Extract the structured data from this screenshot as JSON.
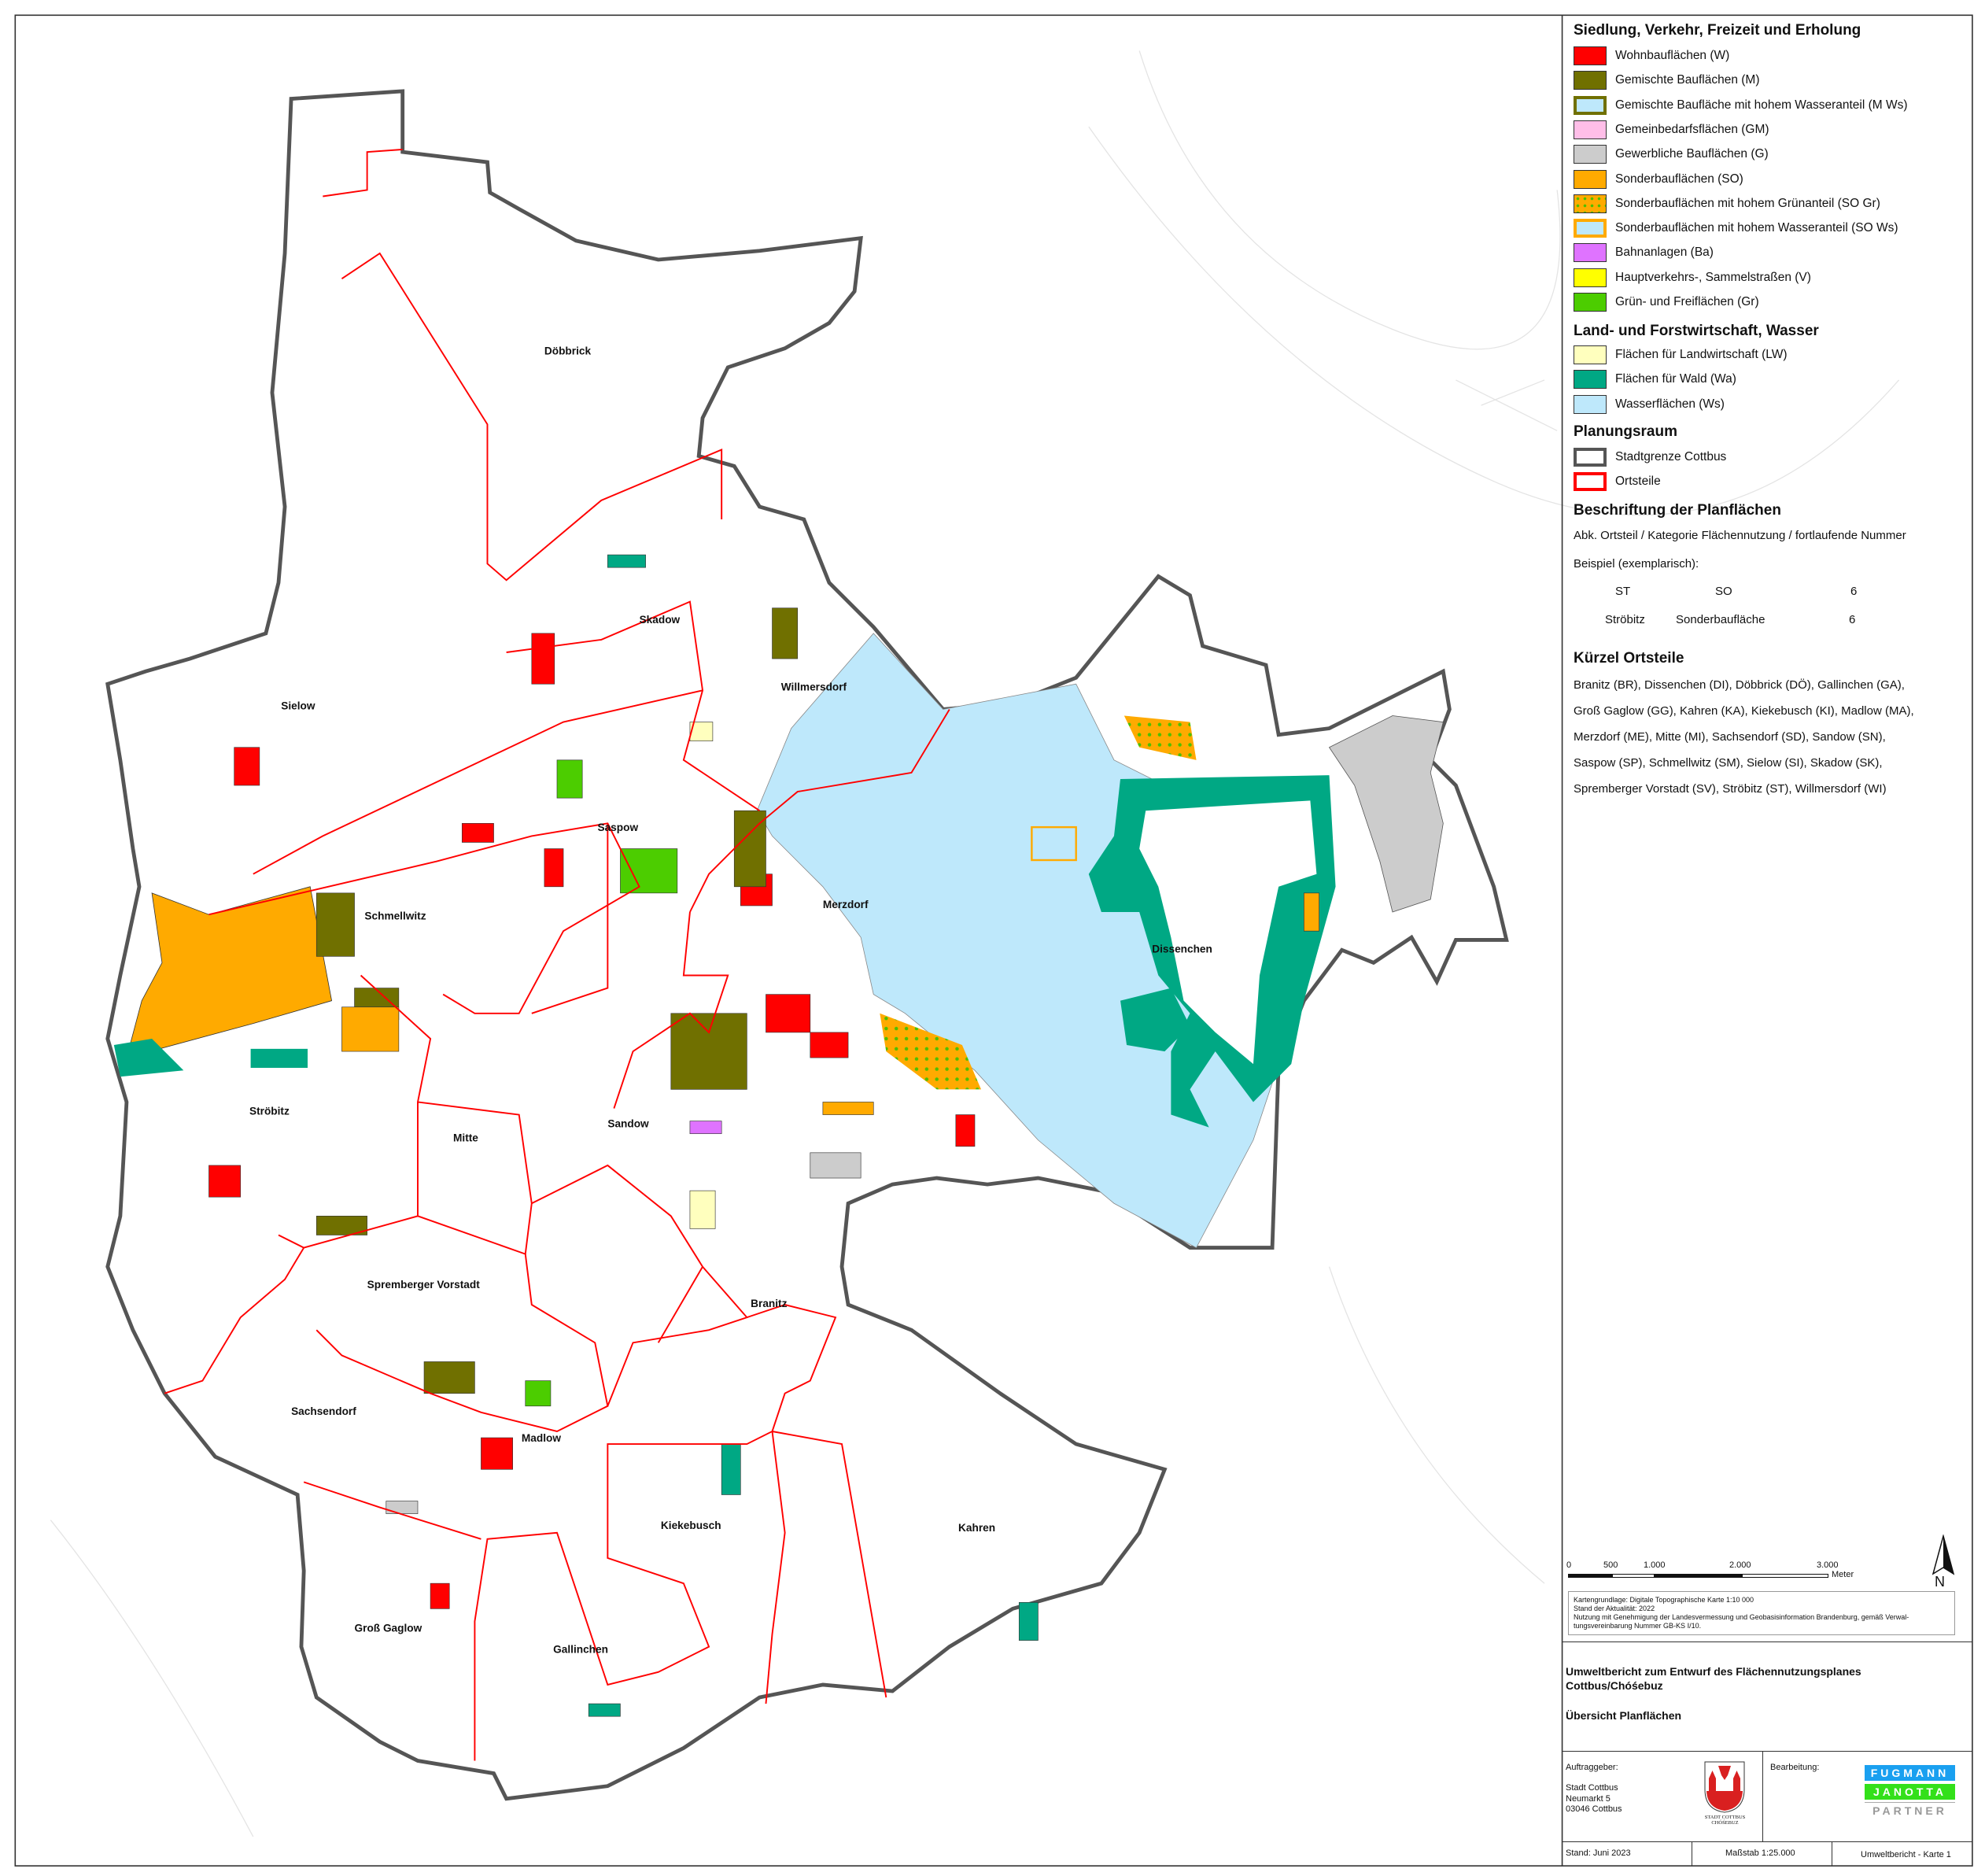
{
  "legend": {
    "section1_title": "Siedlung, Verkehr, Freizeit und Erholung",
    "section1_items": [
      {
        "label": "Wohnbauflächen (W)",
        "color": "#ff0000"
      },
      {
        "label": "Gemischte Bauflächen (M)",
        "color": "#707000"
      },
      {
        "label": "Gemischte Baufläche mit hohem Wasseranteil (M Ws)",
        "color": "#bee8fb",
        "border": "#707000"
      },
      {
        "label": "Gemeinbedarfsflächen (GM)",
        "color": "#ffbee8"
      },
      {
        "label": "Gewerbliche Bauflächen (G)",
        "color": "#cccccc"
      },
      {
        "label": "Sonderbauflächen (SO)",
        "color": "#ffaa00"
      },
      {
        "label": "Sonderbauflächen mit hohem Grünanteil (SO Gr)",
        "color": "#ffaa00",
        "pattern": "#4cc000"
      },
      {
        "label": "Sonderbauflächen mit hohem Wasseranteil (SO Ws)",
        "color": "#bee8fb",
        "border": "#ffaa00"
      },
      {
        "label": "Bahnanlagen (Ba)",
        "color": "#df73ff"
      },
      {
        "label": "Hauptverkehrs-, Sammelstraßen (V)",
        "color": "#ffff00"
      },
      {
        "label": "Grün- und Freiflächen (Gr)",
        "color": "#4ccd00"
      }
    ],
    "section2_title": "Land- und Forstwirtschaft, Wasser",
    "section2_items": [
      {
        "label": "Flächen für Landwirtschaft (LW)",
        "color": "#ffffbe"
      },
      {
        "label": "Flächen für Wald (Wa)",
        "color": "#00a884"
      },
      {
        "label": "Wasserflächen (Ws)",
        "color": "#bee8fb"
      }
    ],
    "section3_title": "Planungsraum",
    "section3_items": [
      {
        "label": "Stadtgrenze Cottbus",
        "color": "#ffffff",
        "border": "#555555"
      },
      {
        "label": "Ortsteile",
        "color": "#ffffff",
        "border": "#ff0000"
      }
    ],
    "section4_title": "Beschriftung der Planflächen",
    "section4_desc": "Abk. Ortsteil / Kategorie Flächennutzung / fortlaufende Nummer",
    "section4_example_label": "Beispiel (exemplarisch):",
    "example_row1": [
      "ST",
      "SO",
      "6"
    ],
    "example_row2": [
      "Ströbitz",
      "Sonderbaufläche",
      "6"
    ],
    "section5_title": "Kürzel Ortsteile",
    "section5_lines": [
      "Branitz (BR), Dissenchen (DI), Döbbrick (DÖ), Gallinchen (GA),",
      "Groß Gaglow (GG), Kahren (KA), Kiekebusch (KI), Madlow (MA),",
      "Merzdorf (ME), Mitte (MI), Sachsendorf (SD), Sandow (SN),",
      "Saspow (SP), Schmellwitz (SM), Sielow (SI), Skadow (SK),",
      "Spremberger Vorstadt (SV), Ströbitz (ST), Willmersdorf (WI)"
    ]
  },
  "scalebar": {
    "ticks": [
      "0",
      "500",
      "1.000",
      "2.000",
      "3.000"
    ],
    "unit": "Meter",
    "north": "N"
  },
  "source_note": [
    "Kartengrundlage: Digitale Topographische Karte 1:10 000",
    "Stand der Aktualität: 2022",
    "Nutzung mit Genehmigung der Landesvermessung und Geobasisinformation Brandenburg, gemäß Verwal-",
    "tungsvereinbarung Nummer GB-KS I/10."
  ],
  "title_block": {
    "title_line1": "Umweltbericht zum Entwurf des Flächennutzungsplanes",
    "title_line2": "Cottbus/Chóśebuz",
    "subtitle": "Übersicht Planflächen",
    "client_label": "Auftraggeber:",
    "client": [
      "Stadt Cottbus",
      "Neumarkt 5",
      "03046 Cottbus"
    ],
    "crest_text": "STADT COTTBUS CHÓŚEBUZ",
    "contractor_label": "Bearbeitung:",
    "logo_lines": [
      "FUGMANN",
      "JANOTTA",
      "PARTNER"
    ],
    "stand": "Stand: Juni 2023",
    "massstab": "Maßstab 1:25.000",
    "karte": "Umweltbericht - Karte 1"
  },
  "map": {
    "place_labels": [
      "Döbbrick",
      "Skadow",
      "Sielow",
      "Willmersdorf",
      "Saspow",
      "Merzdorf",
      "Schmellwitz",
      "Dissenchen",
      "Ströbitz",
      "Mitte",
      "Sandow",
      "Spremberger Vorstadt",
      "Branitz",
      "Sachsendorf",
      "Madlow",
      "Kiekebusch",
      "Kahren",
      "Groß Gaglow",
      "Gallinchen"
    ]
  }
}
